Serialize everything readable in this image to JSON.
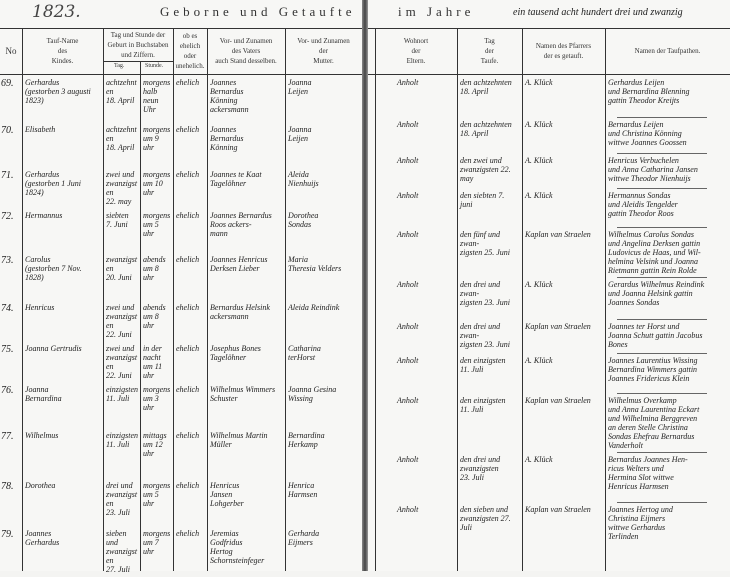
{
  "left_page": {
    "year": "1823.",
    "title": "Geborne und Getaufte",
    "headers": {
      "number": "No",
      "child_name": "Tauf-Name\ndes\nKindes.",
      "birth": "Tag und Stunde der\nGeburt in Buchstaben\nund Ziffern.",
      "birth_day": "Tag.",
      "birth_hour": "Stunde.",
      "legitimacy": "ob es\nehelich\noder\nunehelich.",
      "father": "Vor- und Zunamen\ndes Vaters\nauch Stand desselben.",
      "mother": "Vor- und Zunamen\nder\nMutter."
    },
    "rows": [
      {
        "no": "69.",
        "name": "Gerhardus\n(gestorben 3 augusti 1823)",
        "day": "achtzehnten\n18. April",
        "hour": "morgens\nhalb neun\nUhr",
        "legit": "ehelich",
        "father": "Joannes\nBernardus\nKönning\nackersmann",
        "mother": "Joanna\nLeijen"
      },
      {
        "no": "70.",
        "name": "Elisabeth",
        "day": "achtzehnten\n18. April",
        "hour": "morgens\num 9\nuhr",
        "legit": "ehelich",
        "father": "Joannes\nBernardus\nKönning",
        "mother": "Joanna\nLeijen"
      },
      {
        "no": "71.",
        "name": "Gerhardus\n(gestorben 1 Juni 1824)",
        "day": "zwei und\nzwanzigsten\n22. may",
        "hour": "morgens\num 10\nuhr",
        "legit": "ehelich",
        "father": "Joannes te Kaat\nTagelöhner",
        "mother": "Aleida\nNienhuijs"
      },
      {
        "no": "72.",
        "name": "Hermannus",
        "day": "siebten\n7. Juni",
        "hour": "morgens\num 5\nuhr",
        "legit": "ehelich",
        "father": "Joannes Bernardus\nRoos ackers-\nmann",
        "mother": "Dorothea\nSondas"
      },
      {
        "no": "73.",
        "name": "Carolus\n(gestorben 7 Nov. 1828)",
        "day": "zwanzigsten\n20. Juni",
        "hour": "abends\num 8\nuhr",
        "legit": "ehelich",
        "father": "Joannes Henricus\nDerksen Lieber",
        "mother": "Maria\nTheresia Velders"
      },
      {
        "no": "74.",
        "name": "Henricus",
        "day": "zwei und\nzwanzigsten\n22. Juni",
        "hour": "abends\num 8\nuhr",
        "legit": "ehelich",
        "father": "Bernardus Helsink\nackersmann",
        "mother": "Aleida Reindink"
      },
      {
        "no": "75.",
        "name": "Joanna Gertrudis",
        "day": "zwei und\nzwanzigsten\n22. Juni",
        "hour": "in der nacht\num 11\nuhr",
        "legit": "ehelich",
        "father": "Josephus Bones\nTagelöhner",
        "mother": "Catharina\nterHorst"
      },
      {
        "no": "76.",
        "name": "Joanna\nBernardina",
        "day": "einzigsten\n11. Juli",
        "hour": "morgens\num 3\nuhr",
        "legit": "ehelich",
        "father": "Wilhelmus Wimmers\nSchuster",
        "mother": "Joanna Gesina\nWissing"
      },
      {
        "no": "77.",
        "name": "Wilhelmus",
        "day": "einzigsten\n11. Juli",
        "hour": "mittags\num 12\nuhr",
        "legit": "ehelich",
        "father": "Wilhelmus Martin\nMüller",
        "mother": "Bernardina\nHerkamp"
      },
      {
        "no": "78.",
        "name": "Dorothea",
        "day": "drei und\nzwanzigsten\n23. Juli",
        "hour": "morgens\num 5\nuhr",
        "legit": "ehelich",
        "father": "Henricus\nJansen\nLohgerber",
        "mother": "Henrica\nHarmsen"
      },
      {
        "no": "79.",
        "name": "Joannes\nGerhardus",
        "day": "sieben und\nzwanzigsten\n27. Juli",
        "hour": "morgens\num 7\nuhr",
        "legit": "ehelich",
        "father": "Jeremias\nGodfridus\nHertog\nSchornsteinfeger",
        "mother": "Gerharda\nEijmers"
      }
    ]
  },
  "right_page": {
    "title": "im Jahre",
    "title_handwritten": "ein tausend acht hundert drei und zwanzig",
    "headers": {
      "residence": "Wohnort\nder\nEltern.",
      "baptism_day": "Tag\nder\nTaufe.",
      "priest": "Namen des Pfarrers\nder es getauft.",
      "godparents": "Namen der Taufpathen."
    },
    "rows": [
      {
        "residence": "Anholt",
        "baptism": "den achtzehnten\n18. April",
        "priest": "A. Klück",
        "godparents": "Gerhardus Leijen\nund Bernardina Blenning\ngattin Theodor Kreijts"
      },
      {
        "residence": "Anholt",
        "baptism": "den achtzehnten\n18. April",
        "priest": "A. Klück",
        "godparents": "Bernardus Leijen\nund Christina Könning\nwittwe Joannes Goossen"
      },
      {
        "residence": "Anholt",
        "baptism": "den zwei und\nzwanzigsten 22.\nmay",
        "priest": "A. Klück",
        "godparents": "Henricus Verbuchelen\nund Anna Catharina Jansen\nwittwe Theodor Nienhuijs"
      },
      {
        "residence": "Anholt",
        "baptism": "den siebten 7.\njuni",
        "priest": "A. Klück",
        "godparents": "Hermannus Sondas\nund Aleidis Tengelder\ngattin Theodor Roos"
      },
      {
        "residence": "Anholt",
        "baptism": "den fünf und zwan-\nzigsten 25. Juni",
        "priest": "Kaplan van Straelen",
        "godparents": "Wilhelmus Carolus Sondas\nund Angelina Derksen gattin\nLudovicus de Haas, und Wil-\nhelmina Velsink und Joanna\nRietmann gattin Rein Rolde"
      },
      {
        "residence": "Anholt",
        "baptism": "den drei und zwan-\nzigsten 23. Juni",
        "priest": "A. Klück",
        "godparents": "Gerardus Wilhelmus Reindink\nund Joanna Helsink gattin\nJoannes Sondas"
      },
      {
        "residence": "Anholt",
        "baptism": "den drei und zwan-\nzigsten 23. Juni",
        "priest": "Kaplan van Straelen",
        "godparents": "Joannes ter Horst und\nJoanna Schutt gattin Jacobus\nBones"
      },
      {
        "residence": "Anholt",
        "baptism": "den einzigsten\n11. Juli",
        "priest": "A. Klück",
        "godparents": "Joannes Laurentius Wissing\nBernardina Wimmers gattin\nJoannes Fridericus Klein"
      },
      {
        "residence": "Anholt",
        "baptism": "den einzigsten\n11. Juli",
        "priest": "Kaplan van Straelen",
        "godparents": "Wilhelmus Overkamp\nund Anna Laurentina Eckart\nund Wilhelmina Berggreven\nan deren Stelle Christina\nSondas Ehefrau Bernardus\nVanderholt"
      },
      {
        "residence": "Anholt",
        "baptism": "den drei und\nzwanzigsten\n23. Juli",
        "priest": "A. Klück",
        "godparents": "Bernardus Joannes Hen-\nricus Welters und\nHermina Slot wittwe\nHenricus Harmsen"
      },
      {
        "residence": "Anholt",
        "baptism": "den sieben und\nzwanzigsten 27.\nJuli",
        "priest": "Kaplan van Straelen",
        "godparents": "Joannes Hertog und\nChristina Eijmers\nwittwe Gerhardus\nTerlinden"
      }
    ]
  }
}
